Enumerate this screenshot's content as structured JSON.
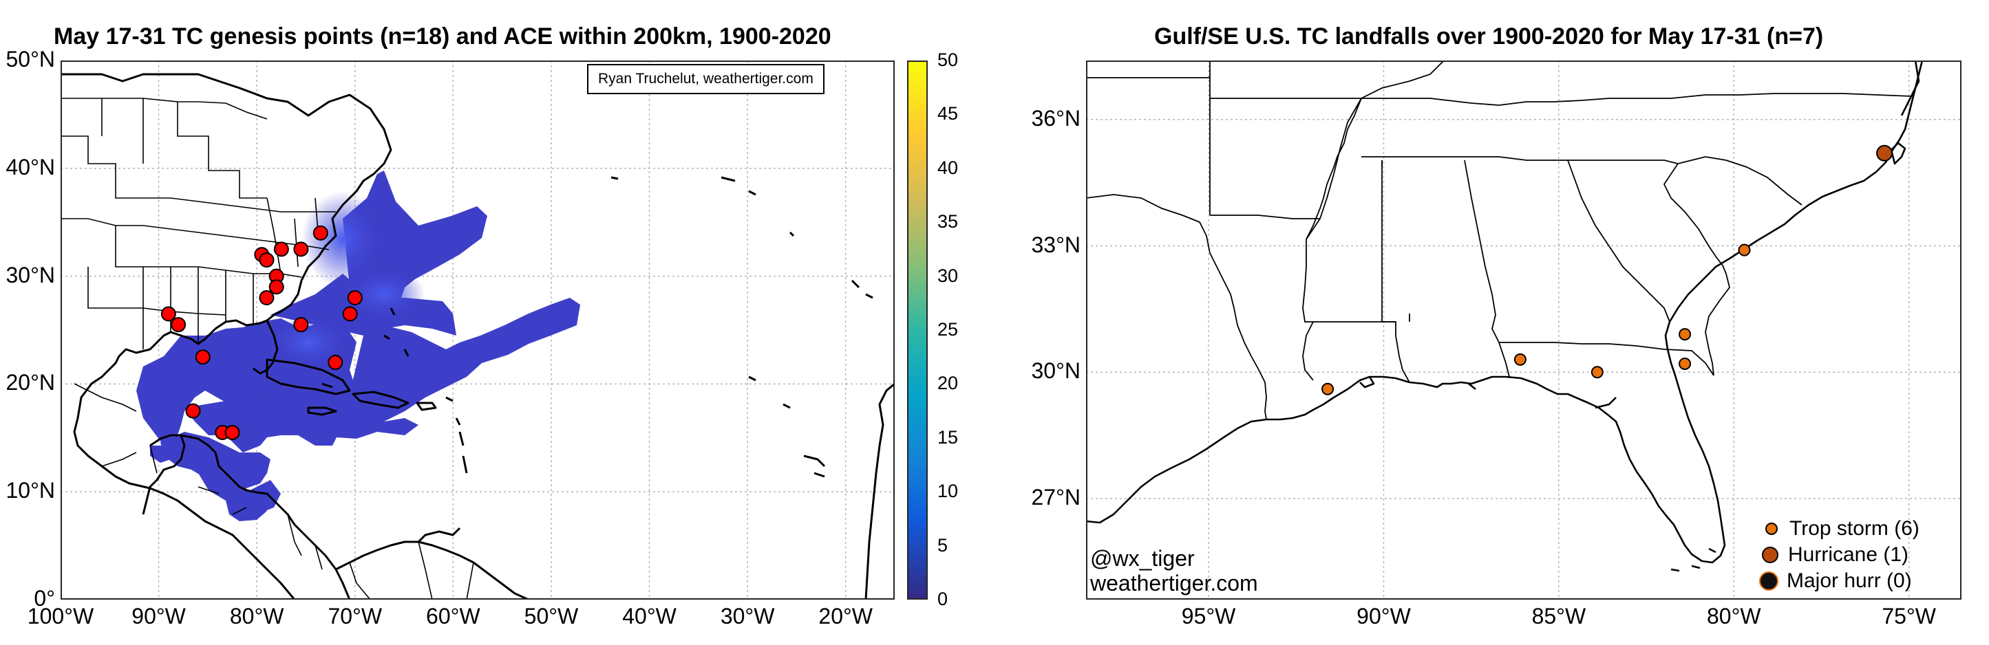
{
  "left_panel": {
    "title": "May 17-31 TC genesis points (n=18) and ACE within 200km, 1900-2020",
    "credit": "Ryan Truchelut, weathertiger.com",
    "y_ticks": [
      {
        "value": 50,
        "label": "50°N"
      },
      {
        "value": 40,
        "label": "40°N"
      },
      {
        "value": 30,
        "label": "30°N"
      },
      {
        "value": 20,
        "label": "20°N"
      },
      {
        "value": 10,
        "label": "10°N"
      },
      {
        "value": 0,
        "label": "0°"
      }
    ],
    "x_ticks": [
      {
        "value": -100,
        "label": "100°W"
      },
      {
        "value": -90,
        "label": "90°W"
      },
      {
        "value": -80,
        "label": "80°W"
      },
      {
        "value": -70,
        "label": "70°W"
      },
      {
        "value": -60,
        "label": "60°W"
      },
      {
        "value": -50,
        "label": "50°W"
      },
      {
        "value": -40,
        "label": "40°W"
      },
      {
        "value": -30,
        "label": "30°W"
      },
      {
        "value": -20,
        "label": "20°W"
      }
    ],
    "colorbar": {
      "range": [
        0,
        50
      ],
      "ticks": [
        "0",
        "5",
        "10",
        "15",
        "20",
        "25",
        "30",
        "35",
        "40",
        "45",
        "50"
      ],
      "colormap": "parula"
    },
    "fill_color": "#3e3fc8",
    "point_color": "#ff0000"
  },
  "right_panel": {
    "title": "Gulf/SE U.S. TC landfalls over 1900-2020 for May 17-31 (n=7)",
    "y_ticks": [
      {
        "value": 36,
        "label": "36°N"
      },
      {
        "value": 33,
        "label": "33°N"
      },
      {
        "value": 30,
        "label": "30°N"
      },
      {
        "value": 27,
        "label": "27°N"
      }
    ],
    "x_ticks": [
      {
        "value": -95,
        "label": "95°W"
      },
      {
        "value": -90,
        "label": "90°W"
      },
      {
        "value": -85,
        "label": "85°W"
      },
      {
        "value": -80,
        "label": "80°W"
      },
      {
        "value": -75,
        "label": "75°W"
      }
    ],
    "handle": "@wx_tiger",
    "site": "weathertiger.com",
    "legend": {
      "trop_storm": "Trop storm (6)",
      "hurricane": "Hurricane (1)",
      "major": "Major hurr (0)"
    },
    "colors": {
      "trop_storm": "#e8720c",
      "hurricane": "#b84a0e",
      "major": "#111111"
    }
  },
  "chart_data": [
    {
      "type": "scatter",
      "title": "May 17-31 TC genesis points (n=18) and ACE within 200km, 1900-2020",
      "xlim": [
        -100,
        -15
      ],
      "ylim": [
        0,
        50
      ],
      "grid": true,
      "series": [
        {
          "points": [
            [
              -73.5,
              34.0
            ],
            [
              -79.5,
              32.0
            ],
            [
              -79.0,
              31.5
            ],
            [
              -77.5,
              32.5
            ],
            [
              -75.5,
              32.5
            ],
            [
              -78.0,
              30.0
            ],
            [
              -78.0,
              29.0
            ],
            [
              -79.0,
              28.0
            ],
            [
              -70.0,
              28.0
            ],
            [
              -70.5,
              26.5
            ],
            [
              -75.5,
              25.5
            ],
            [
              -89.0,
              26.5
            ],
            [
              -88.0,
              25.5
            ],
            [
              -85.5,
              22.5
            ],
            [
              -72.0,
              22.0
            ],
            [
              -86.5,
              17.5
            ],
            [
              -83.5,
              15.5
            ],
            [
              -82.5,
              15.5
            ]
          ]
        }
      ],
      "colorbar": {
        "range": [
          0,
          50
        ]
      }
    },
    {
      "type": "scatter",
      "title": "Gulf/SE U.S. TC landfalls over 1900-2020 for May 17-31 (n=7)",
      "xlim": [
        -98.5,
        -73.5
      ],
      "ylim": [
        24.6,
        37.4
      ],
      "grid": true,
      "series": [
        {
          "name": "Trop storm (6)",
          "points": [
            [
              -91.6,
              29.6
            ],
            [
              -86.1,
              30.3
            ],
            [
              -83.9,
              30.0
            ],
            [
              -81.4,
              30.9
            ],
            [
              -81.4,
              30.2
            ],
            [
              -79.7,
              32.9
            ]
          ]
        },
        {
          "name": "Hurricane (1)",
          "points": [
            [
              -75.7,
              35.2
            ]
          ]
        },
        {
          "name": "Major hurr (0)",
          "points": []
        }
      ]
    }
  ]
}
